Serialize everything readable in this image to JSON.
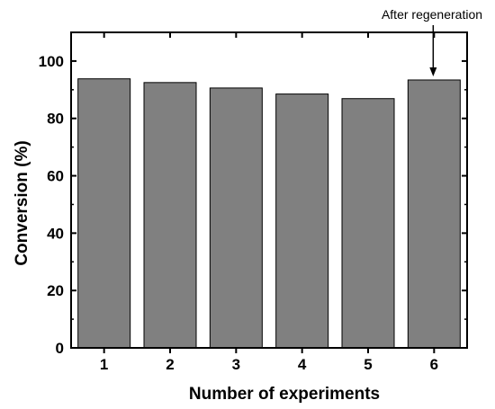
{
  "chart_data": {
    "type": "bar",
    "categories": [
      "1",
      "2",
      "3",
      "4",
      "5",
      "6"
    ],
    "values": [
      93.8,
      92.5,
      90.6,
      88.5,
      86.9,
      93.4
    ],
    "xlabel": "Number of experiments",
    "ylabel": "Conversion (%)",
    "ylim": [
      0,
      110
    ],
    "yticks": [
      0,
      20,
      40,
      60,
      80,
      100
    ],
    "bar_color": "#808080",
    "bar_edge_color": "#000000",
    "grid": false,
    "annotation": {
      "text": "After regeneration",
      "category": "6"
    }
  }
}
